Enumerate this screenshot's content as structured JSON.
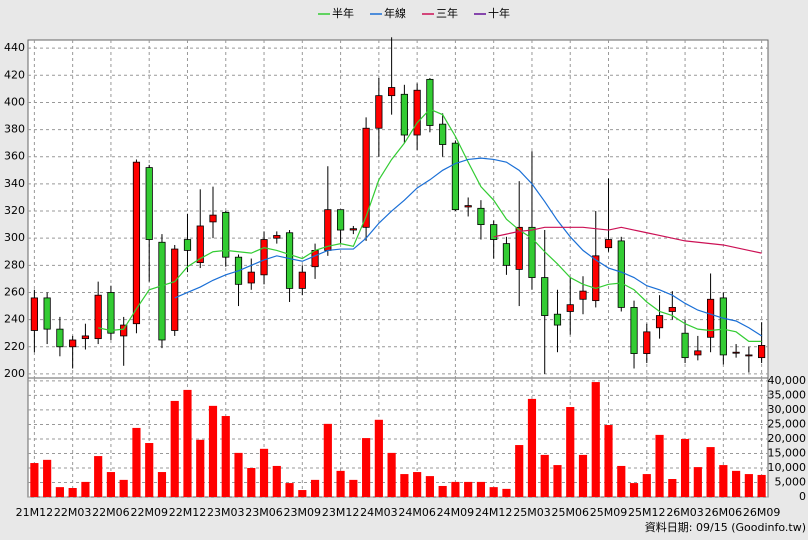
{
  "chart_data": {
    "type": "candlestick",
    "legend": "top",
    "grid": true,
    "up_color": "#ff0000",
    "down_color": "#33cc33",
    "categories": [
      "21M12",
      null,
      null,
      "22M03",
      null,
      null,
      "22M06",
      null,
      null,
      "22M09",
      null,
      null,
      "22M12",
      null,
      null,
      "23M03",
      null,
      null,
      "23M06",
      null,
      null,
      "23M09",
      null,
      null,
      "23M12",
      null,
      null,
      "24M03",
      null,
      null,
      "24M06",
      null,
      null,
      "24M09",
      null,
      null,
      "24M12",
      null,
      null,
      "25M03",
      null,
      null,
      "25M06",
      null,
      null,
      "25M09",
      null,
      null,
      "25M12",
      null,
      null,
      "26M03",
      null,
      null,
      "26M06",
      null,
      null,
      "26M09"
    ],
    "open": [
      232,
      256,
      233,
      220,
      226,
      226,
      260,
      228,
      237,
      352,
      297,
      232,
      299,
      282,
      312,
      319,
      286,
      267,
      273,
      300,
      304,
      263,
      279,
      291,
      321,
      306,
      308,
      381,
      405,
      406,
      376,
      417,
      384,
      370,
      323,
      322,
      310,
      296,
      277,
      308,
      271,
      244,
      246,
      255,
      254,
      293,
      298,
      249,
      215,
      234,
      246,
      230,
      214,
      227,
      256,
      216,
      214,
      212
    ],
    "high": [
      262,
      260,
      242,
      228,
      237,
      268,
      265,
      242,
      358,
      354,
      303,
      295,
      318,
      336,
      338,
      320,
      288,
      285,
      305,
      305,
      306,
      280,
      296,
      353,
      321,
      309,
      389,
      418,
      448,
      413,
      414,
      418,
      392,
      372,
      330,
      328,
      313,
      301,
      342,
      364,
      306,
      262,
      271,
      272,
      320,
      344,
      301,
      254,
      237,
      258,
      261,
      240,
      228,
      274,
      260,
      222,
      220,
      238
    ],
    "low": [
      216,
      222,
      213,
      204,
      218,
      222,
      225,
      206,
      230,
      268,
      219,
      228,
      275,
      278,
      300,
      279,
      250,
      262,
      266,
      296,
      253,
      258,
      270,
      287,
      296,
      303,
      298,
      360,
      391,
      370,
      365,
      378,
      360,
      320,
      316,
      299,
      285,
      273,
      250,
      262,
      200,
      216,
      229,
      244,
      249,
      290,
      246,
      204,
      208,
      226,
      240,
      208,
      210,
      216,
      207,
      212,
      201,
      208
    ],
    "close": [
      256,
      233,
      220,
      225,
      228,
      258,
      230,
      236,
      356,
      299,
      225,
      292,
      291,
      309,
      317,
      286,
      266,
      275,
      299,
      302,
      263,
      275,
      291,
      321,
      306,
      307,
      381,
      405,
      411,
      376,
      409,
      383,
      369,
      321,
      324,
      310,
      299,
      280,
      308,
      271,
      243,
      236,
      251,
      261,
      287,
      299,
      249,
      215,
      231,
      243,
      249,
      212,
      217,
      255,
      214,
      216,
      214,
      221
    ],
    "ylim": [
      197,
      446
    ],
    "yticks": [
      200,
      220,
      240,
      260,
      280,
      300,
      320,
      340,
      360,
      380,
      400,
      420,
      440
    ],
    "series": [
      {
        "name": "半年",
        "color": "#33cc33",
        "values": [
          null,
          null,
          null,
          null,
          null,
          234,
          232,
          233,
          248,
          262,
          265,
          268,
          279,
          285,
          290,
          291,
          290,
          289,
          293,
          291,
          288,
          285,
          291,
          294,
          296,
          294,
          316,
          343,
          358,
          370,
          385,
          395,
          391,
          375,
          356,
          338,
          328,
          314,
          306,
          300,
          290,
          281,
          271,
          266,
          263,
          266,
          267,
          262,
          253,
          246,
          243,
          237,
          233,
          232,
          233,
          231,
          224,
          224
        ]
      },
      {
        "name": "年線",
        "color": "#1a6fd6",
        "values": [
          null,
          null,
          null,
          null,
          null,
          null,
          null,
          null,
          null,
          null,
          null,
          256,
          260,
          264,
          269,
          273,
          276,
          280,
          284,
          287,
          285,
          283,
          287,
          291,
          292,
          292,
          300,
          311,
          320,
          328,
          337,
          343,
          350,
          355,
          358,
          359,
          358,
          356,
          350,
          340,
          327,
          313,
          301,
          291,
          284,
          278,
          275,
          271,
          265,
          262,
          258,
          252,
          247,
          244,
          241,
          239,
          234,
          228
        ]
      },
      {
        "name": "三年",
        "color": "#cc1155",
        "values": [
          null,
          null,
          null,
          null,
          null,
          null,
          null,
          null,
          null,
          null,
          null,
          null,
          null,
          null,
          null,
          null,
          null,
          null,
          null,
          null,
          null,
          null,
          null,
          null,
          null,
          null,
          null,
          null,
          null,
          null,
          null,
          null,
          null,
          null,
          null,
          null,
          301,
          303,
          305,
          306,
          308,
          308,
          308,
          308,
          307,
          306,
          308,
          306,
          304,
          302,
          300,
          298,
          297,
          296,
          295,
          293,
          291,
          289
        ]
      },
      {
        "name": "十年",
        "color": "#661199",
        "values": [
          null,
          null,
          null,
          null,
          null,
          null,
          null,
          null,
          null,
          null,
          null,
          null,
          null,
          null,
          null,
          null,
          null,
          null,
          null,
          null,
          null,
          null,
          null,
          null,
          null,
          null,
          null,
          null,
          null,
          null,
          null,
          null,
          null,
          null,
          null,
          null,
          null,
          null,
          null,
          null,
          null,
          null,
          null,
          null,
          null,
          null,
          null,
          null,
          null,
          null,
          null,
          null,
          null,
          null,
          null,
          null,
          null,
          null
        ]
      }
    ],
    "volume": {
      "color": "#ff0000",
      "values": [
        11700,
        12800,
        3400,
        3100,
        5200,
        14100,
        8600,
        5900,
        23800,
        18600,
        8600,
        33100,
        36900,
        19700,
        31400,
        27900,
        15200,
        10000,
        16600,
        10700,
        4800,
        2400,
        5900,
        25200,
        9000,
        5900,
        20300,
        26600,
        15200,
        7900,
        8600,
        7200,
        3800,
        5200,
        5200,
        5200,
        3400,
        2800,
        17900,
        33800,
        14500,
        11000,
        31000,
        14500,
        39600,
        24800,
        10700,
        4800,
        7900,
        21400,
        6200,
        20000,
        10300,
        17200,
        11000,
        9000,
        7900,
        7600
      ],
      "ylim": [
        0,
        41000
      ],
      "yticks": [
        0,
        {
          "value": 5000,
          "label": "5,000"
        },
        {
          "value": 10000,
          "label": "10,000"
        },
        {
          "value": 15000,
          "label": "15,000"
        },
        {
          "value": 20000,
          "label": "20,000"
        },
        {
          "value": 25000,
          "label": "25,000"
        },
        {
          "value": 30000,
          "label": "30,000"
        },
        {
          "value": 35000,
          "label": "35,000"
        },
        {
          "value": 40000,
          "label": "40,000"
        }
      ]
    },
    "footnote": "資料日期: 09/15 (Goodinfo.tw)"
  }
}
